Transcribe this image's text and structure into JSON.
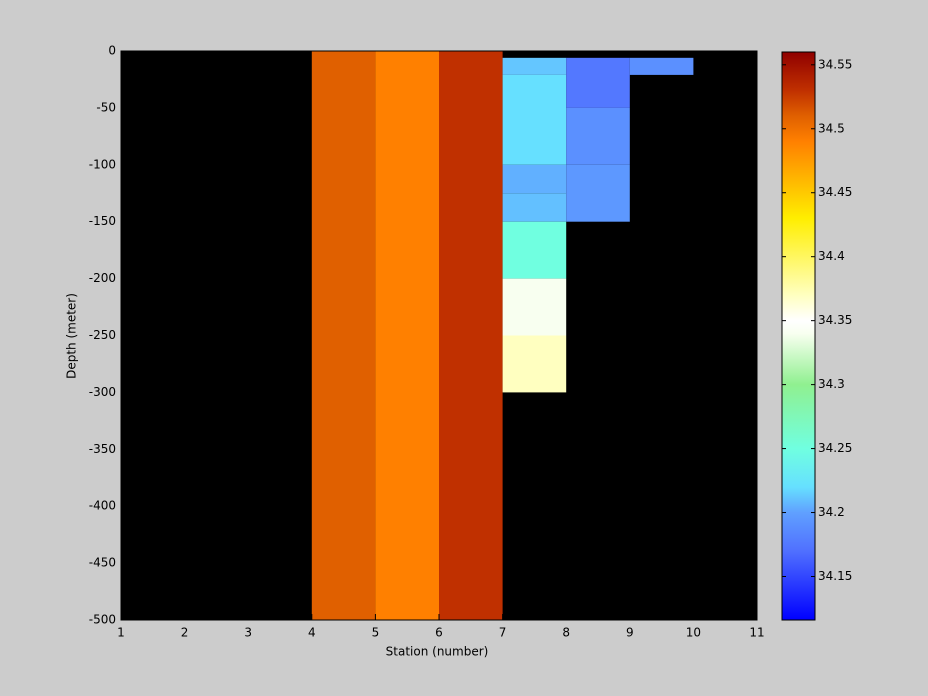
{
  "chart_data": {
    "type": "heatmap",
    "xlabel": "Station (number)",
    "ylabel": "Depth (meter)",
    "xlim": [
      1,
      11
    ],
    "xticks": [
      1,
      2,
      3,
      4,
      5,
      6,
      7,
      8,
      9,
      10,
      11
    ],
    "ylim": [
      -500,
      0
    ],
    "yticks": [
      0,
      -50,
      -100,
      -150,
      -200,
      -250,
      -300,
      -350,
      -400,
      -450,
      -500
    ],
    "clim": [
      34.116,
      34.56
    ],
    "cticks": [
      34.15,
      34.2,
      34.25,
      34.3,
      34.35,
      34.4,
      34.45,
      34.5,
      34.55
    ],
    "colormap": [
      {
        "value": 34.116,
        "color": "#0000ff"
      },
      {
        "value": 34.17,
        "color": "#5070ff"
      },
      {
        "value": 34.2,
        "color": "#60a0ff"
      },
      {
        "value": 34.22,
        "color": "#66e0ff"
      },
      {
        "value": 34.25,
        "color": "#70ffe0"
      },
      {
        "value": 34.3,
        "color": "#90f090"
      },
      {
        "value": 34.34,
        "color": "#f8fff0"
      },
      {
        "value": 34.35,
        "color": "#ffffff"
      },
      {
        "value": 34.37,
        "color": "#ffffc0"
      },
      {
        "value": 34.43,
        "color": "#ffee00"
      },
      {
        "value": 34.49,
        "color": "#ff8000"
      },
      {
        "value": 34.51,
        "color": "#e06000"
      },
      {
        "value": 34.53,
        "color": "#c03000"
      },
      {
        "value": 34.56,
        "color": "#900000"
      }
    ],
    "cells": [
      {
        "x": [
          4,
          5
        ],
        "y": [
          -500,
          0
        ],
        "value": 34.51
      },
      {
        "x": [
          5,
          6
        ],
        "y": [
          -500,
          0
        ],
        "value": 34.49
      },
      {
        "x": [
          6,
          7
        ],
        "y": [
          -500,
          0
        ],
        "value": 34.53
      },
      {
        "x": [
          7,
          8
        ],
        "y": [
          -21,
          -6
        ],
        "value": 34.212
      },
      {
        "x": [
          7,
          8
        ],
        "y": [
          -100,
          -21
        ],
        "value": 34.22
      },
      {
        "x": [
          7,
          8
        ],
        "y": [
          -125,
          -100
        ],
        "value": 34.205
      },
      {
        "x": [
          7,
          8
        ],
        "y": [
          -150,
          -125
        ],
        "value": 34.21
      },
      {
        "x": [
          7,
          8
        ],
        "y": [
          -200,
          -150
        ],
        "value": 34.25
      },
      {
        "x": [
          7,
          8
        ],
        "y": [
          -250,
          -200
        ],
        "value": 34.34
      },
      {
        "x": [
          7,
          8
        ],
        "y": [
          -300,
          -250
        ],
        "value": 34.37
      },
      {
        "x": [
          8,
          9
        ],
        "y": [
          -50,
          -6
        ],
        "value": 34.175
      },
      {
        "x": [
          8,
          9
        ],
        "y": [
          -100,
          -50
        ],
        "value": 34.19
      },
      {
        "x": [
          8,
          9
        ],
        "y": [
          -150,
          -100
        ],
        "value": 34.195
      },
      {
        "x": [
          9,
          10
        ],
        "y": [
          -21,
          -6
        ],
        "value": 34.19
      }
    ]
  }
}
